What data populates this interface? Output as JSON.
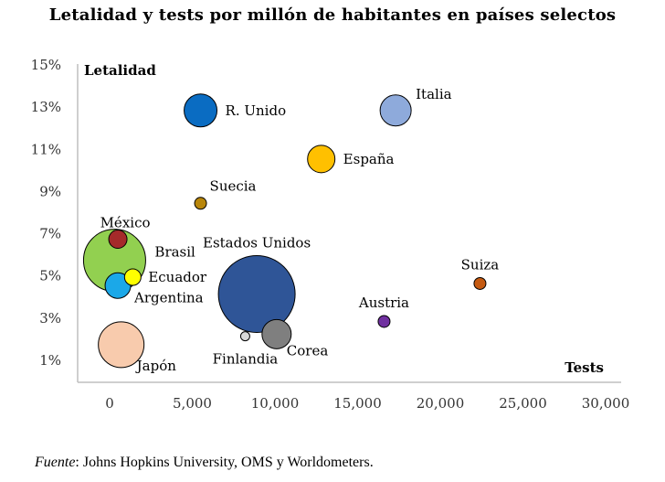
{
  "chart_data": {
    "type": "scatter",
    "title": "Letalidad y tests por millón de habitantes en países selectos",
    "xlabel": "Tests",
    "ylabel": "Letalidad",
    "xlim": [
      -2000,
      31000
    ],
    "ylim": [
      0.2,
      15.5
    ],
    "x_ticks": [
      0,
      5000,
      10000,
      15000,
      20000,
      25000,
      30000
    ],
    "x_tick_labels": [
      "0",
      "5,000",
      "10,000",
      "15,000",
      "20,000",
      "25,000",
      "30,000"
    ],
    "y_ticks": [
      1,
      3,
      5,
      7,
      9,
      11,
      13,
      15
    ],
    "y_tick_labels": [
      "1%",
      "3%",
      "5%",
      "7%",
      "9%",
      "11%",
      "13%",
      "15%"
    ],
    "points": [
      {
        "name": "R. Unido",
        "tests": 5500,
        "lethality": 12.8,
        "size": 18,
        "color": "#0a6cc2",
        "label_pos": "right"
      },
      {
        "name": "Italia",
        "tests": 17300,
        "lethality": 12.8,
        "size": 17,
        "color": "#8eaadb",
        "label_pos": "upper-right"
      },
      {
        "name": "España",
        "tests": 12800,
        "lethality": 10.5,
        "size": 15,
        "color": "#ffc000",
        "label_pos": "right"
      },
      {
        "name": "Suecia",
        "tests": 5500,
        "lethality": 8.4,
        "size": 6.5,
        "color": "#b8860b",
        "label_pos": "upper-right"
      },
      {
        "name": "México",
        "tests": 500,
        "lethality": 6.7,
        "size": 10,
        "color": "#a52a2a",
        "label_pos": "upper"
      },
      {
        "name": "Argentina",
        "tests": 500,
        "lethality": 4.5,
        "size": 14,
        "color": "#1ba8e8",
        "label_pos": "lower-right"
      },
      {
        "name": "Brasil",
        "tests": 300,
        "lethality": 5.7,
        "size": 34,
        "color": "#92d050",
        "label_pos": "right"
      },
      {
        "name": "Ecuador",
        "tests": 1400,
        "lethality": 4.9,
        "size": 9,
        "color": "#ffff00",
        "label_pos": "right"
      },
      {
        "name": "Estados Unidos",
        "tests": 8900,
        "lethality": 4.1,
        "size": 42,
        "color": "#2f5597",
        "label_pos": "upper"
      },
      {
        "name": "Suiza",
        "tests": 22400,
        "lethality": 4.6,
        "size": 6.5,
        "color": "#c55a11",
        "label_pos": "upper"
      },
      {
        "name": "Austria",
        "tests": 16600,
        "lethality": 2.8,
        "size": 6.5,
        "color": "#7030a0",
        "label_pos": "upper"
      },
      {
        "name": "Corea",
        "tests": 10100,
        "lethality": 2.2,
        "size": 16,
        "color": "#7f7f7f",
        "label_pos": "lower-right"
      },
      {
        "name": "Finlandia",
        "tests": 8200,
        "lethality": 2.1,
        "size": 5,
        "color": "#d9d9d9",
        "label_pos": "lower"
      },
      {
        "name": "Japón",
        "tests": 700,
        "lethality": 1.7,
        "size": 25,
        "color": "#f8cbad",
        "label_pos": "lower-right"
      }
    ]
  },
  "footnote": {
    "label": "Fuente",
    "text": ": Johns Hopkins University, OMS y Worldometers."
  }
}
